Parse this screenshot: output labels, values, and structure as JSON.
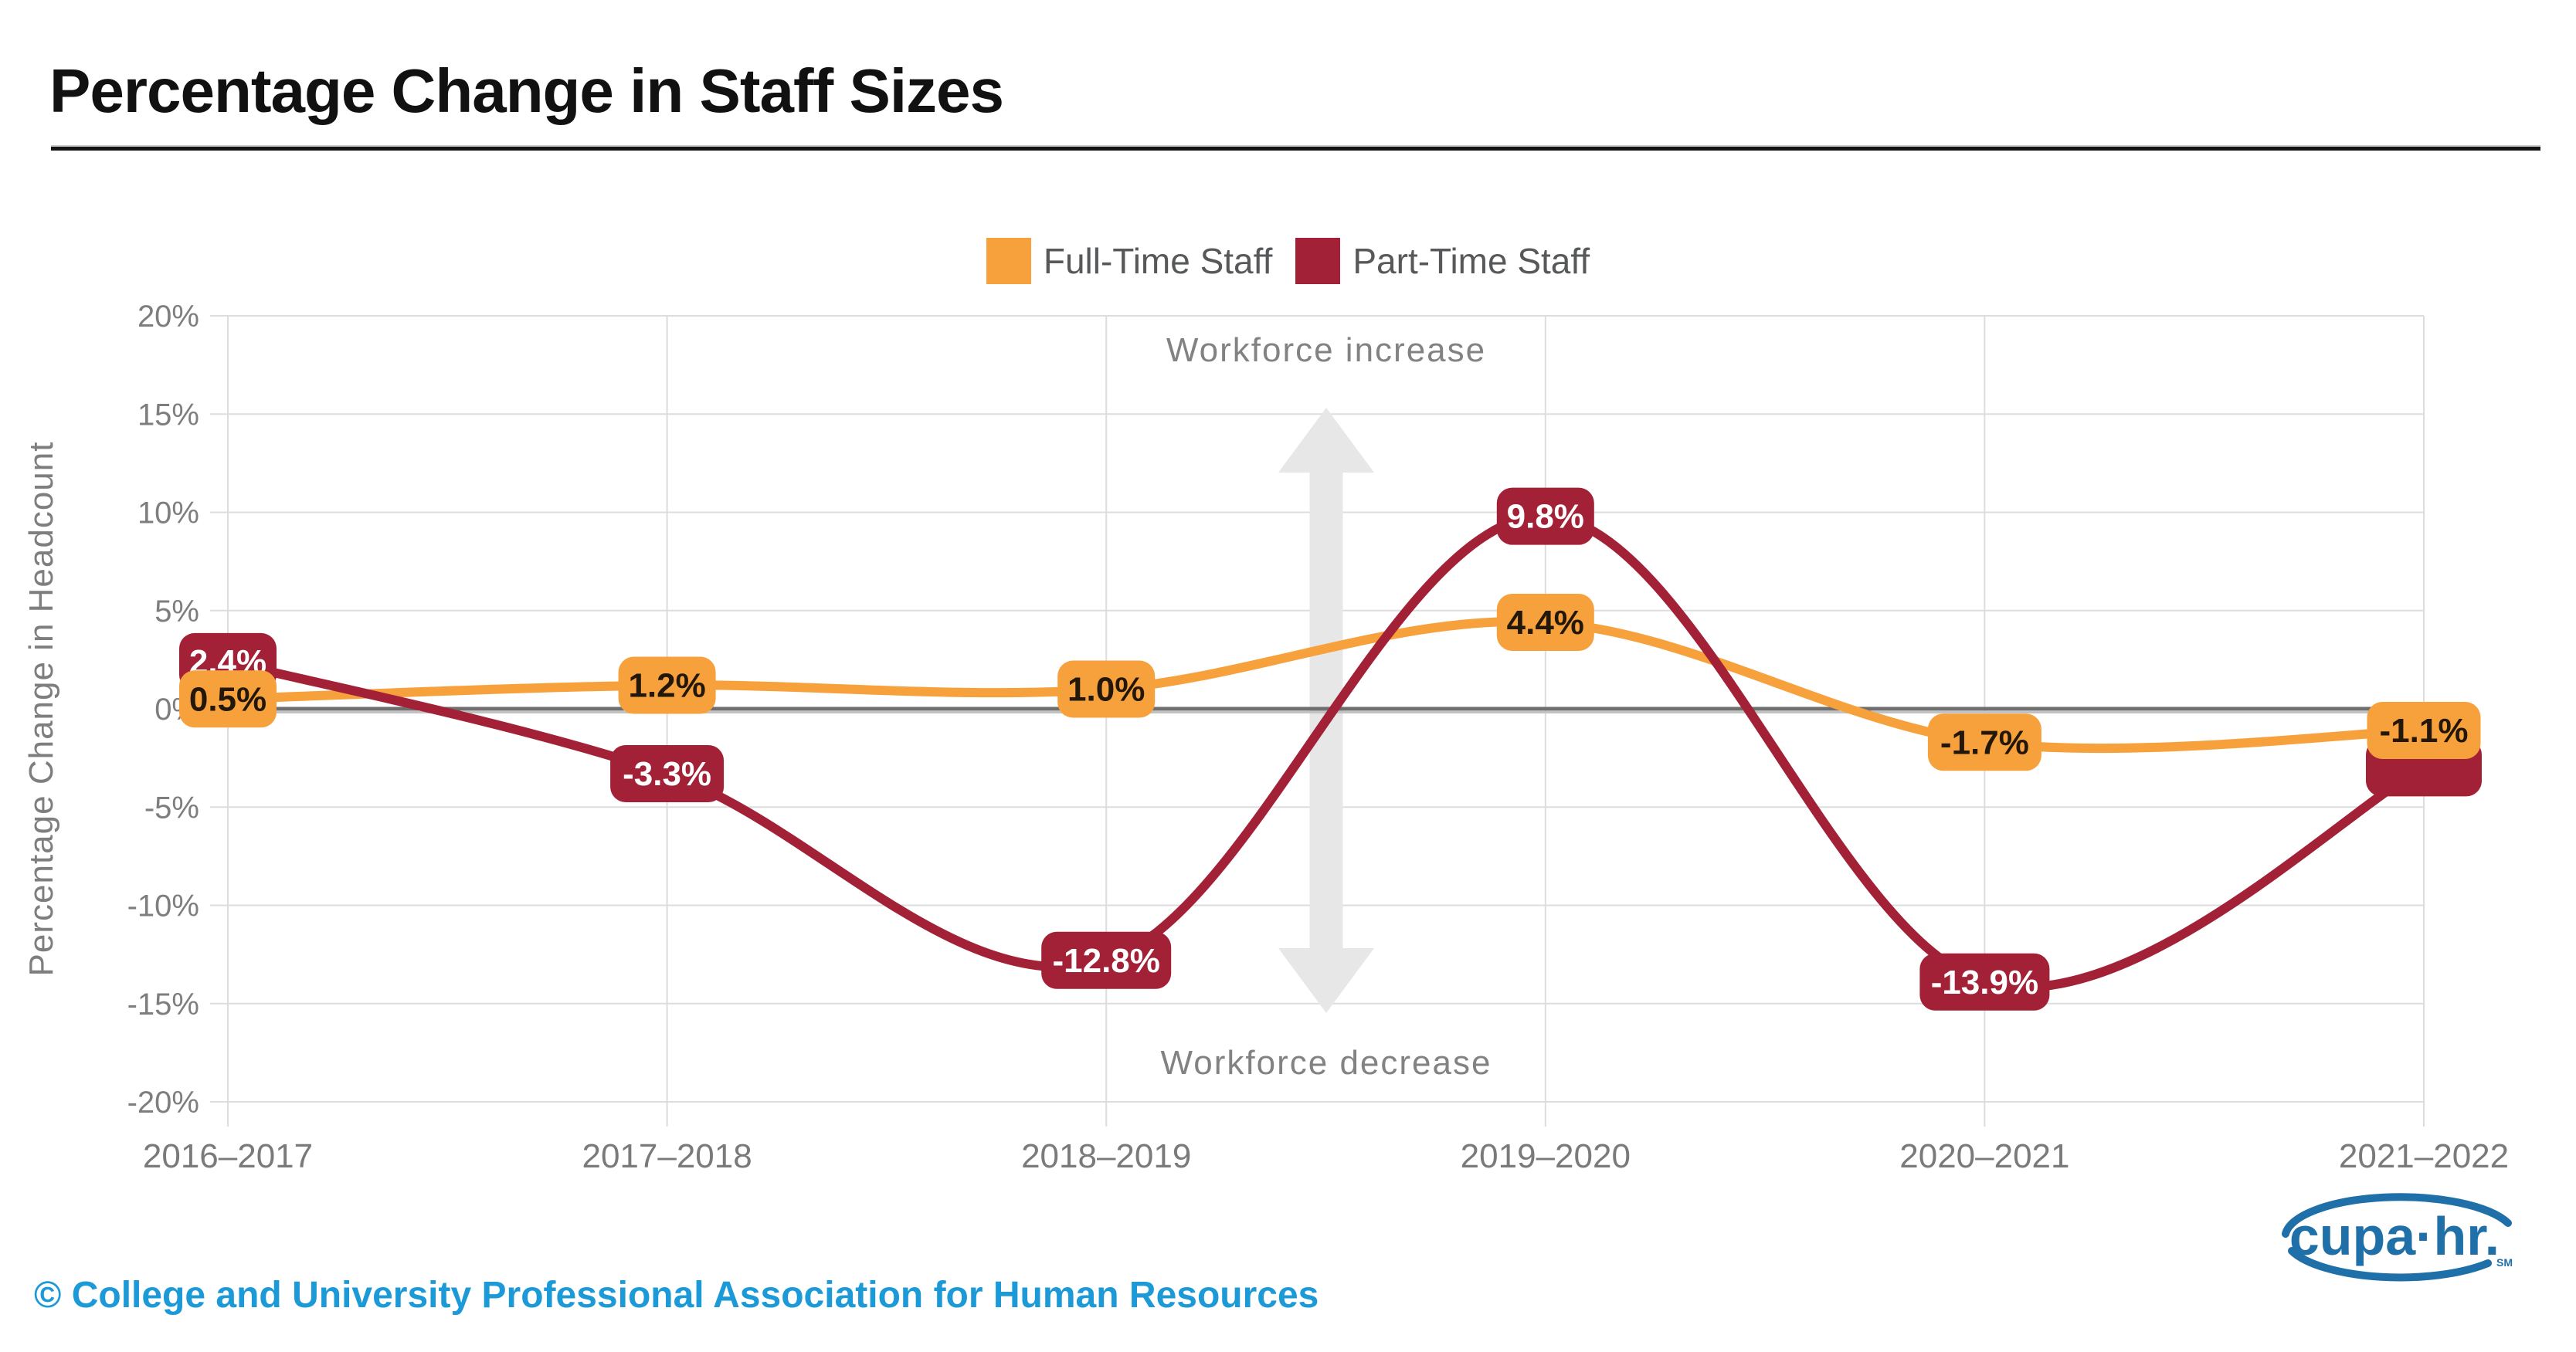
{
  "header": {
    "title": "Percentage Change in Staff Sizes"
  },
  "chart_data": {
    "type": "line",
    "title": "Percentage Change in Staff Sizes",
    "categories": [
      "2016–2017",
      "2017–2018",
      "2018–2019",
      "2019–2020",
      "2020–2021",
      "2021–2022"
    ],
    "xlabel": "",
    "ylabel": "Percentage Change in Headcount",
    "ylim": [
      -20,
      20
    ],
    "ytick_step": 5,
    "ytick_labels": [
      "20%",
      "15%",
      "10%",
      "5%",
      "0%",
      "-5%",
      "-10%",
      "-15%",
      "-20%"
    ],
    "grid": true,
    "zero_line": true,
    "legend_position": "top-center",
    "line_style": "smooth",
    "series": [
      {
        "name": "Full-Time Staff",
        "color": "#F7A13C",
        "label_text_color": "#221708",
        "values": [
          0.5,
          1.2,
          1.0,
          4.4,
          -1.7,
          -1.1
        ],
        "point_labels": [
          "0.5%",
          "1.2%",
          "1.0%",
          "4.4%",
          "-1.7%",
          "-1.1%"
        ]
      },
      {
        "name": "Part-Time Staff",
        "color": "#A32137",
        "label_text_color": "#FFFFFF",
        "values": [
          2.4,
          -3.3,
          -12.8,
          9.8,
          -13.9,
          -3.0
        ],
        "point_labels": [
          "2.4%",
          "-3.3%",
          "-12.8%",
          "9.8%",
          "-13.9%",
          ""
        ],
        "note": "2021–2022 badge is occluded behind the Full-Time -1.1% badge; value estimated from line endpoint"
      }
    ],
    "annotations": [
      {
        "id": "increase",
        "text": "Workforce increase"
      },
      {
        "id": "decrease",
        "text": "Workforce decrease"
      }
    ]
  },
  "footer": {
    "copyright": "© College and University Professional Association for Human Resources"
  },
  "logo": {
    "text": "cupa·hr.",
    "mark": "SM"
  },
  "colors": {
    "copyright_blue": "#1C9AD7",
    "logo_blue": "#1F6FA9",
    "axis_text": "#7E7E7E",
    "x_axis_text": "#7A7A7A",
    "annotation_text": "#828282",
    "arrow_gray": "#E7E7E7",
    "gridline": "#DDDDDD",
    "zero_line": "#6F6F6F",
    "zero_line_shadow": "#C2C2C2",
    "title_text": "#111111",
    "legend_text": "#57585A"
  }
}
